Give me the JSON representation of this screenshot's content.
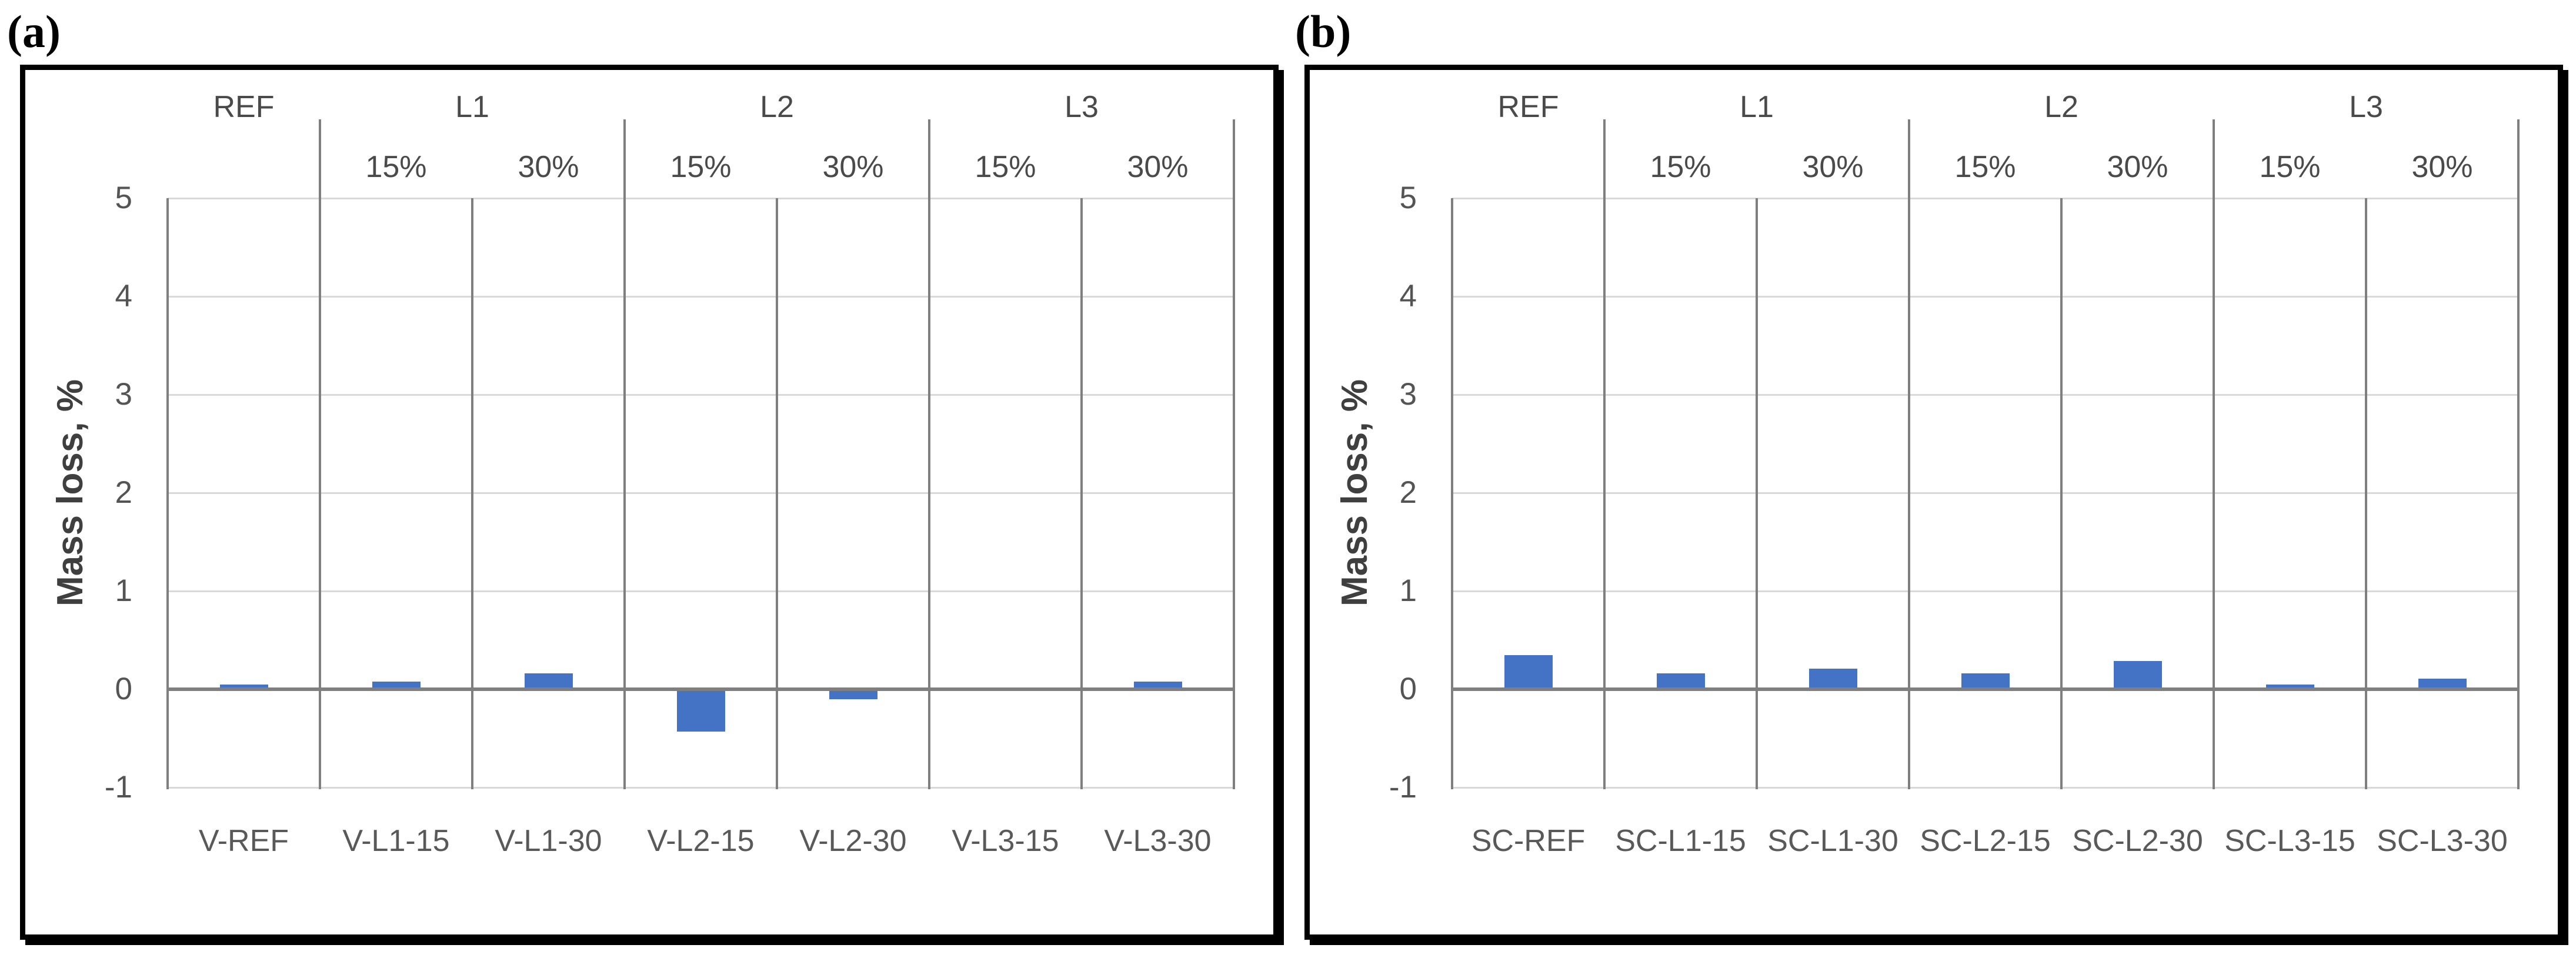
{
  "chart_data": [
    {
      "type": "bar",
      "panel_letter": "(a)",
      "ylabel": "Mass loss, %",
      "xlabel": "",
      "ylim": [
        -1,
        5
      ],
      "yticks": [
        5,
        4,
        3,
        2,
        1,
        0,
        -1
      ],
      "grid": true,
      "legend": "none",
      "bar_color": "#4472C4",
      "column_groups": [
        {
          "label": "REF",
          "sub_labels": []
        },
        {
          "label": "L1",
          "sub_labels": [
            "15%",
            "30%"
          ]
        },
        {
          "label": "L2",
          "sub_labels": [
            "15%",
            "30%"
          ]
        },
        {
          "label": "L3",
          "sub_labels": [
            "15%",
            "30%"
          ]
        }
      ],
      "categories": [
        "V-REF",
        "V-L1-15",
        "V-L1-30",
        "V-L2-15",
        "V-L2-30",
        "V-L3-15",
        "V-L3-30"
      ],
      "values": [
        0.05,
        0.08,
        0.16,
        -0.43,
        -0.1,
        0,
        0.08
      ]
    },
    {
      "type": "bar",
      "panel_letter": "(b)",
      "ylabel": "Mass loss, %",
      "xlabel": "",
      "ylim": [
        -1,
        5
      ],
      "yticks": [
        5,
        4,
        3,
        2,
        1,
        0,
        -1
      ],
      "grid": true,
      "legend": "none",
      "bar_color": "#4472C4",
      "column_groups": [
        {
          "label": "REF",
          "sub_labels": []
        },
        {
          "label": "L1",
          "sub_labels": [
            "15%",
            "30%"
          ]
        },
        {
          "label": "L2",
          "sub_labels": [
            "15%",
            "30%"
          ]
        },
        {
          "label": "L3",
          "sub_labels": [
            "15%",
            "30%"
          ]
        }
      ],
      "categories": [
        "SC-REF",
        "SC-L1-15",
        "SC-L1-30",
        "SC-L2-15",
        "SC-L2-30",
        "SC-L3-15",
        "SC-L3-30"
      ],
      "values": [
        0.35,
        0.16,
        0.21,
        0.16,
        0.29,
        0.05,
        0.11
      ]
    }
  ],
  "styles": {
    "bar_color": "#4472C4",
    "gridline_color": "#D9D9D9",
    "axis_line_color": "#7F7F7F",
    "text_color": "#595959",
    "border_color": "#000000"
  }
}
